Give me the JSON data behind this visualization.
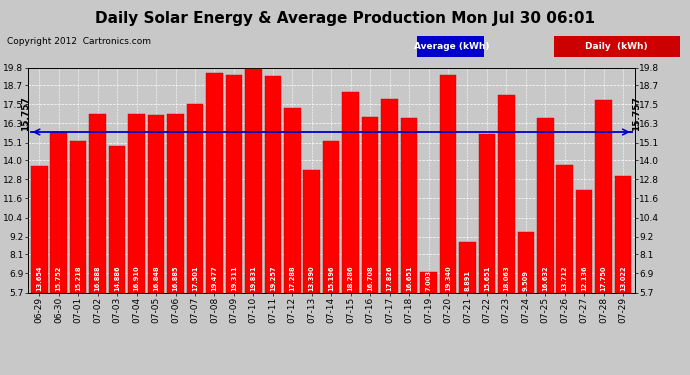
{
  "title": "Daily Solar Energy & Average Production Mon Jul 30 06:01",
  "copyright": "Copyright 2012  Cartronics.com",
  "average_label": "Average (kWh)",
  "daily_label": "Daily  (kWh)",
  "average_value": 15.757,
  "categories": [
    "06-29",
    "06-30",
    "07-01",
    "07-02",
    "07-03",
    "07-04",
    "07-05",
    "07-06",
    "07-07",
    "07-08",
    "07-09",
    "07-10",
    "07-11",
    "07-12",
    "07-13",
    "07-14",
    "07-15",
    "07-16",
    "07-17",
    "07-18",
    "07-19",
    "07-20",
    "07-21",
    "07-22",
    "07-23",
    "07-24",
    "07-25",
    "07-26",
    "07-27",
    "07-28",
    "07-29"
  ],
  "values": [
    13.654,
    15.752,
    15.218,
    16.888,
    14.886,
    16.91,
    16.848,
    16.885,
    17.501,
    19.477,
    19.311,
    19.831,
    19.257,
    17.288,
    13.39,
    15.196,
    18.286,
    16.708,
    17.826,
    16.651,
    7.003,
    19.34,
    8.891,
    15.651,
    18.063,
    9.509,
    16.632,
    13.712,
    12.136,
    17.75,
    13.022
  ],
  "bar_color": "#ff0000",
  "bar_edge_color": "#bb0000",
  "average_line_color": "#0000cc",
  "background_color": "#c8c8c8",
  "plot_bg_color": "#c8c8c8",
  "grid_color": "white",
  "ymin": 5.7,
  "ymax": 19.8,
  "yticks": [
    5.7,
    6.9,
    8.1,
    9.2,
    10.4,
    11.6,
    12.8,
    14.0,
    15.1,
    16.3,
    17.5,
    18.7,
    19.8
  ],
  "title_fontsize": 11,
  "copyright_fontsize": 6.5,
  "bar_label_fontsize": 4.8,
  "avg_annotation_fontsize": 6.5,
  "legend_fontsize": 6.5,
  "xtick_fontsize": 6.5,
  "ytick_fontsize": 6.5,
  "legend_bg": "#1a1aff",
  "legend_red_bg": "#cc0000"
}
